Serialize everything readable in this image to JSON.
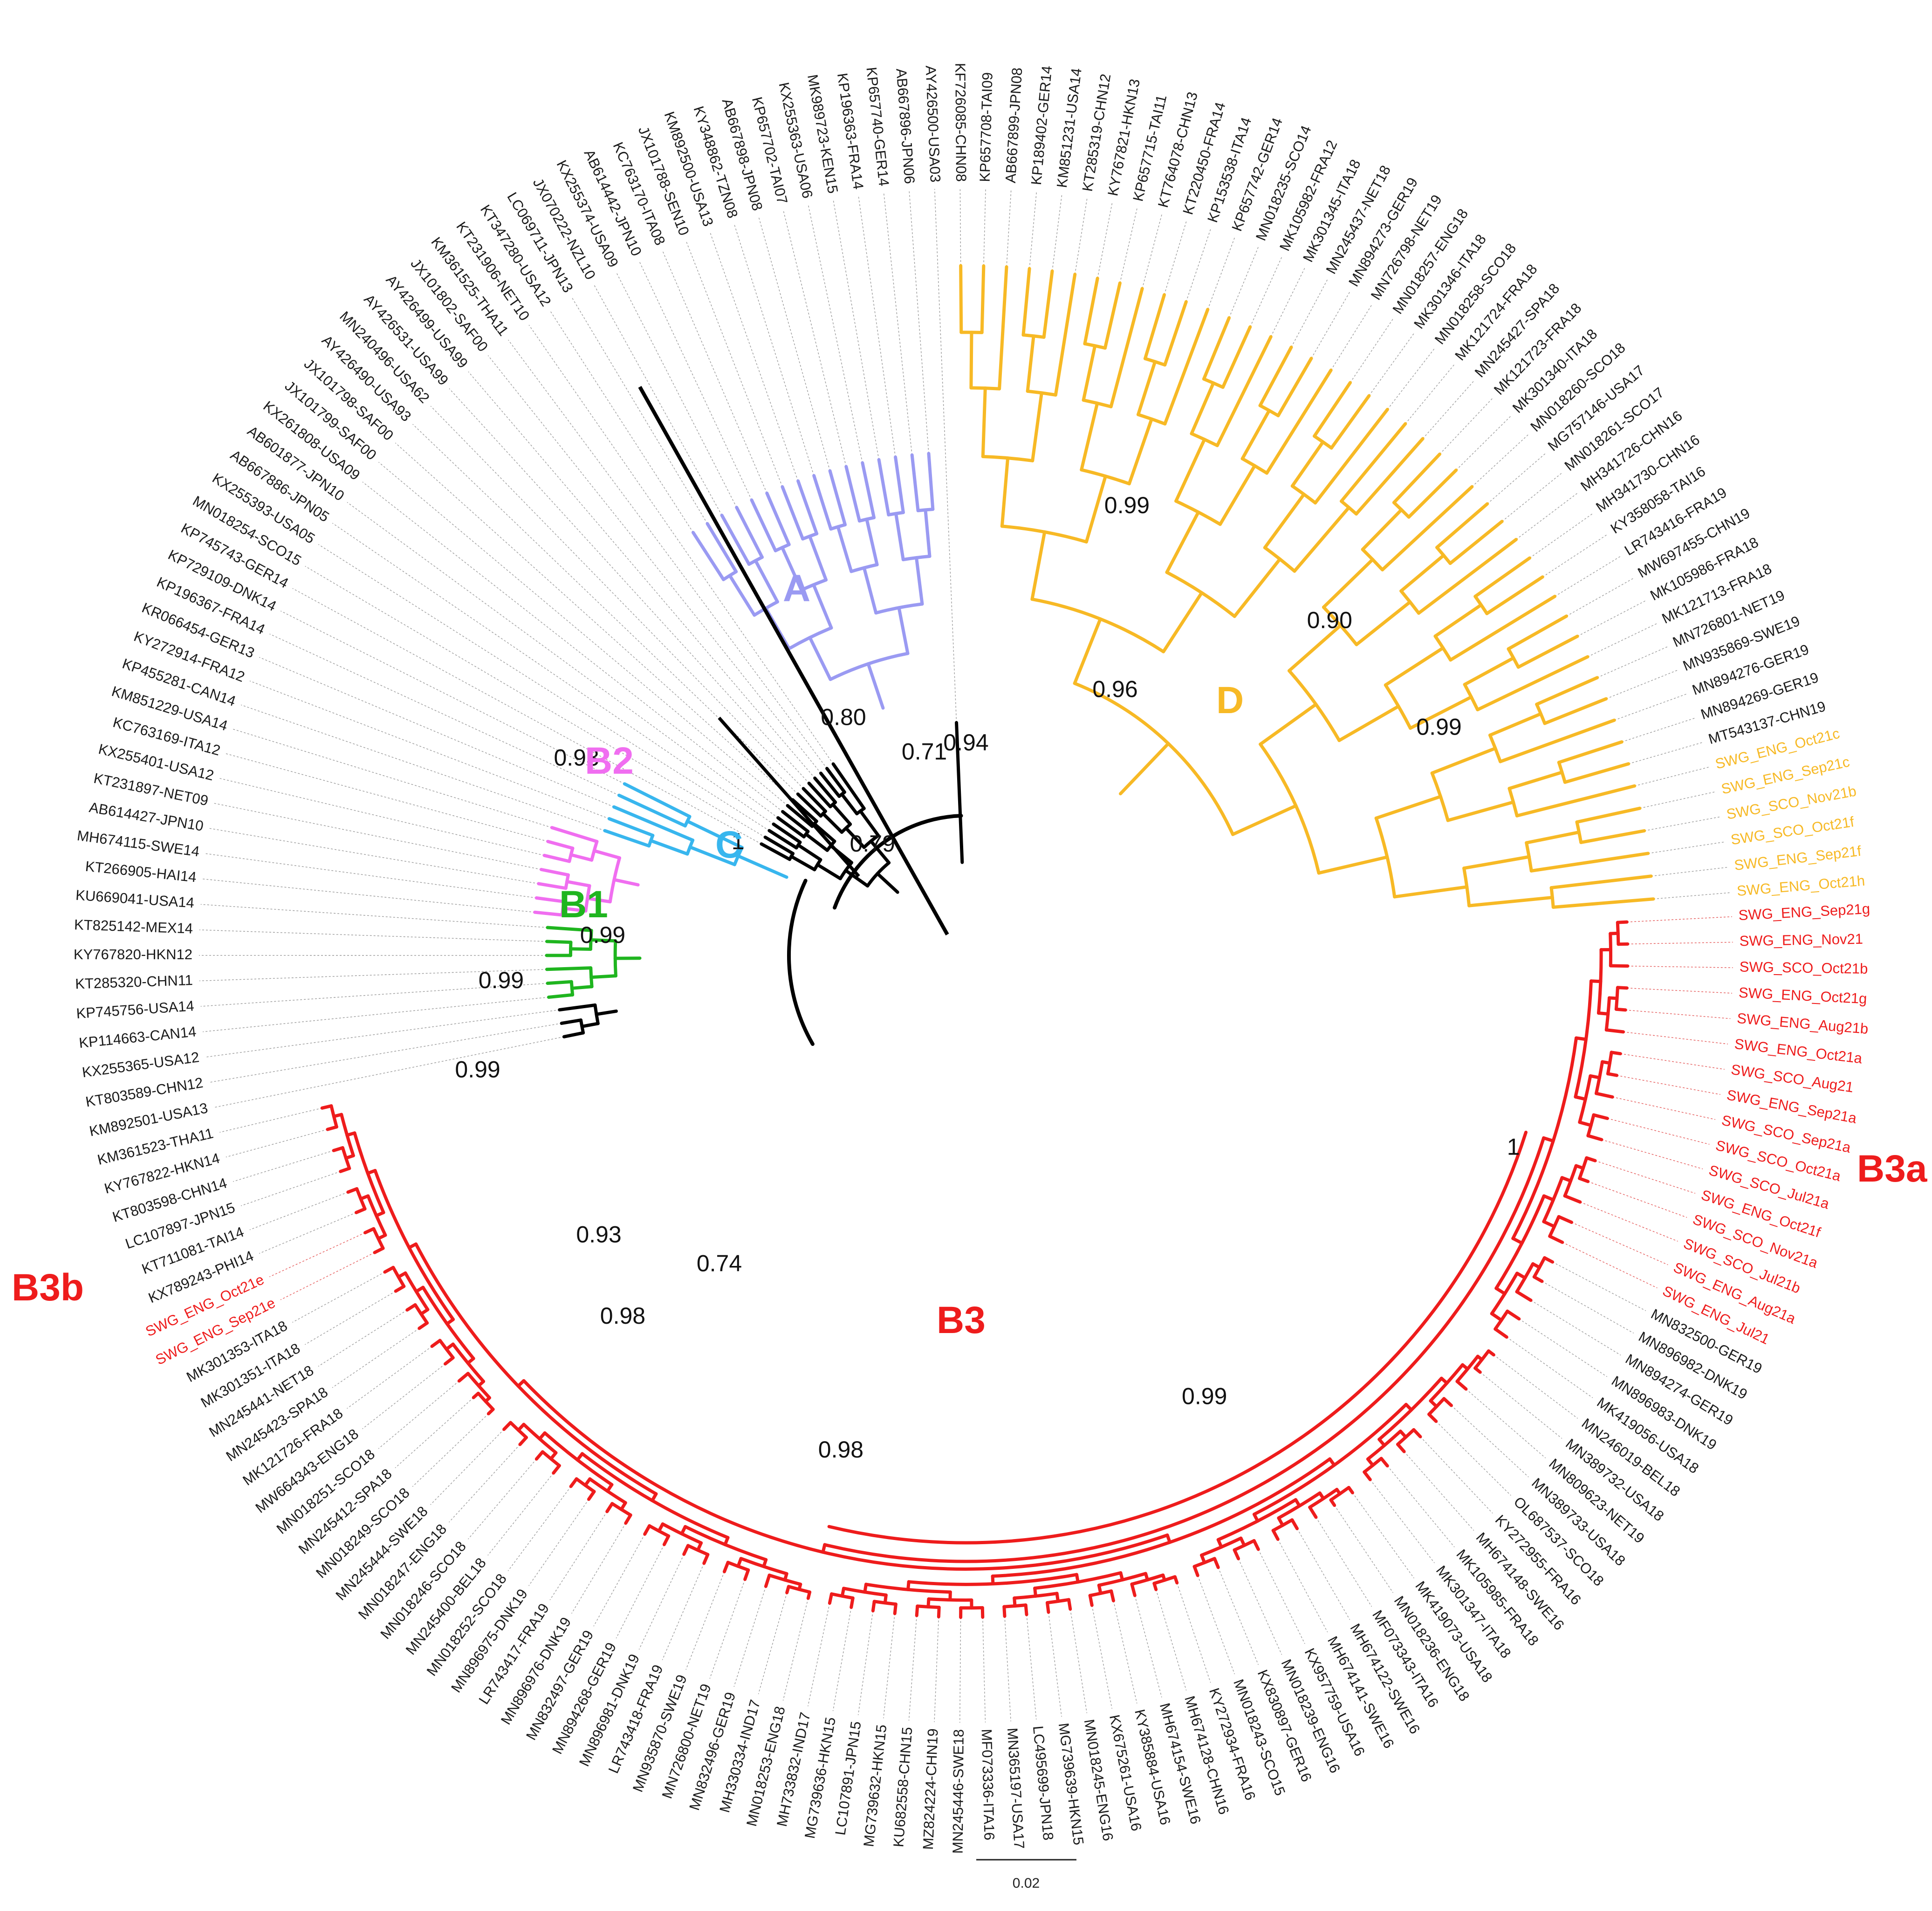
{
  "colors": {
    "A": "#9a9af2",
    "B1": "#1fb51f",
    "B2": "#f06ef0",
    "C": "#38b6ee",
    "D": "#f7b925",
    "B3": "#ee1c1c",
    "backbone": "#000000",
    "tip_black": "#1a1a1a"
  },
  "clade_labels": {
    "A": "A",
    "B1": "B1",
    "B2": "B2",
    "C": "C",
    "D": "D",
    "B3": "B3",
    "B3a": "B3a",
    "B3b": "B3b"
  },
  "support_values": [
    "0.71",
    "0.96",
    "0.99",
    "0.90",
    "0.99",
    "0.94",
    "0.80",
    "0.79",
    "1",
    "0.93",
    "0.99",
    "0.99",
    "0.99",
    "0.93",
    "0.98",
    "0.74",
    "0.98",
    "0.99",
    "1"
  ],
  "scale_bar": {
    "label": "0.02"
  },
  "tips": [
    {
      "label": "SWG_ENG_Sep21g",
      "clade": "B3",
      "color": "red"
    },
    {
      "label": "SWG_ENG_Nov21",
      "clade": "B3",
      "color": "red"
    },
    {
      "label": "SWG_SCO_Oct21b",
      "clade": "B3",
      "color": "red"
    },
    {
      "label": "SWG_ENG_Oct21g",
      "clade": "B3",
      "color": "red"
    },
    {
      "label": "SWG_ENG_Aug21b",
      "clade": "B3",
      "color": "red"
    },
    {
      "label": "SWG_ENG_Oct21a",
      "clade": "B3",
      "color": "red"
    },
    {
      "label": "SWG_SCO_Aug21",
      "clade": "B3",
      "color": "red"
    },
    {
      "label": "SWG_ENG_Sep21a",
      "clade": "B3",
      "color": "red"
    },
    {
      "label": "SWG_SCO_Sep21a",
      "clade": "B3",
      "color": "red"
    },
    {
      "label": "SWG_SCO_Oct21a",
      "clade": "B3",
      "color": "red"
    },
    {
      "label": "SWG_SCO_Jul21a",
      "clade": "B3",
      "color": "red"
    },
    {
      "label": "SWG_ENG_Oct21f",
      "clade": "B3",
      "color": "red"
    },
    {
      "label": "SWG_SCO_Nov21a",
      "clade": "B3",
      "color": "red"
    },
    {
      "label": "SWG_SCO_Jul21b",
      "clade": "B3",
      "color": "red"
    },
    {
      "label": "SWG_ENG_Aug21a",
      "clade": "B3",
      "color": "red"
    },
    {
      "label": "SWG_ENG_Jul21",
      "clade": "B3",
      "color": "red"
    },
    {
      "label": "MN832500-GER19",
      "clade": "B3",
      "color": "black"
    },
    {
      "label": "MN896982-DNK19",
      "clade": "B3",
      "color": "black"
    },
    {
      "label": "MN894274-GER19",
      "clade": "B3",
      "color": "black"
    },
    {
      "label": "MN896983-DNK19",
      "clade": "B3",
      "color": "black"
    },
    {
      "label": "MK419056-USA18",
      "clade": "B3",
      "color": "black"
    },
    {
      "label": "MN246019-BEL18",
      "clade": "B3",
      "color": "black"
    },
    {
      "label": "MN389732-USA18",
      "clade": "B3",
      "color": "black"
    },
    {
      "label": "MN809623-NET19",
      "clade": "B3",
      "color": "black"
    },
    {
      "label": "MN389733-USA18",
      "clade": "B3",
      "color": "black"
    },
    {
      "label": "OL687537-SCO18",
      "clade": "B3",
      "color": "black"
    },
    {
      "label": "KY272955-FRA16",
      "clade": "B3",
      "color": "black"
    },
    {
      "label": "MH674148-SWE16",
      "clade": "B3",
      "color": "black"
    },
    {
      "label": "MK105985-FRA18",
      "clade": "B3",
      "color": "black"
    },
    {
      "label": "MK301347-ITA18",
      "clade": "B3",
      "color": "black"
    },
    {
      "label": "MK419073-USA18",
      "clade": "B3",
      "color": "black"
    },
    {
      "label": "MN018236-ENG18",
      "clade": "B3",
      "color": "black"
    },
    {
      "label": "MF073343-ITA16",
      "clade": "B3",
      "color": "black"
    },
    {
      "label": "MH674122-SWE16",
      "clade": "B3",
      "color": "black"
    },
    {
      "label": "MH674141-SWE16",
      "clade": "B3",
      "color": "black"
    },
    {
      "label": "KX957759-USA16",
      "clade": "B3",
      "color": "black"
    },
    {
      "label": "MN018239-ENG16",
      "clade": "B3",
      "color": "black"
    },
    {
      "label": "KX830897-GER16",
      "clade": "B3",
      "color": "black"
    },
    {
      "label": "MN018243-SCO15",
      "clade": "B3",
      "color": "black"
    },
    {
      "label": "KY272934-FRA16",
      "clade": "B3",
      "color": "black"
    },
    {
      "label": "MH674128-CHN16",
      "clade": "B3",
      "color": "black"
    },
    {
      "label": "MH674154-SWE16",
      "clade": "B3",
      "color": "black"
    },
    {
      "label": "KY385884-USA16",
      "clade": "B3",
      "color": "black"
    },
    {
      "label": "KX675261-USA16",
      "clade": "B3",
      "color": "black"
    },
    {
      "label": "MN018245-ENG16",
      "clade": "B3",
      "color": "black"
    },
    {
      "label": "MG739639-HKN15",
      "clade": "B3",
      "color": "black"
    },
    {
      "label": "LC495699-JPN18",
      "clade": "B3",
      "color": "black"
    },
    {
      "label": "MN365197-USA17",
      "clade": "B3",
      "color": "black"
    },
    {
      "label": "MF073336-ITA16",
      "clade": "B3",
      "color": "black"
    },
    {
      "label": "MN245446-SWE18",
      "clade": "B3",
      "color": "black"
    },
    {
      "label": "MZ824224-CHN19",
      "clade": "B3",
      "color": "black"
    },
    {
      "label": "KU682558-CHN15",
      "clade": "B3",
      "color": "black"
    },
    {
      "label": "MG739632-HKN15",
      "clade": "B3",
      "color": "black"
    },
    {
      "label": "LC107891-JPN15",
      "clade": "B3",
      "color": "black"
    },
    {
      "label": "MG739636-HKN15",
      "clade": "B3",
      "color": "black"
    },
    {
      "label": "MH733832-IND17",
      "clade": "B3",
      "color": "black"
    },
    {
      "label": "MN018253-ENG18",
      "clade": "B3",
      "color": "black"
    },
    {
      "label": "MH330334-IND17",
      "clade": "B3",
      "color": "black"
    },
    {
      "label": "MN832496-GER19",
      "clade": "B3",
      "color": "black"
    },
    {
      "label": "MN726800-NET19",
      "clade": "B3",
      "color": "black"
    },
    {
      "label": "MN935870-SWE19",
      "clade": "B3",
      "color": "black"
    },
    {
      "label": "LR743418-FRA19",
      "clade": "B3",
      "color": "black"
    },
    {
      "label": "MN896981-DNK19",
      "clade": "B3",
      "color": "black"
    },
    {
      "label": "MN894268-GER19",
      "clade": "B3",
      "color": "black"
    },
    {
      "label": "MN832497-GER19",
      "clade": "B3",
      "color": "black"
    },
    {
      "label": "MN896976-DNK19",
      "clade": "B3",
      "color": "black"
    },
    {
      "label": "LR743417-FRA19",
      "clade": "B3",
      "color": "black"
    },
    {
      "label": "MN896975-DNK19",
      "clade": "B3",
      "color": "black"
    },
    {
      "label": "MN018252-SCO18",
      "clade": "B3",
      "color": "black"
    },
    {
      "label": "MN245400-BEL18",
      "clade": "B3",
      "color": "black"
    },
    {
      "label": "MN018246-SCO18",
      "clade": "B3",
      "color": "black"
    },
    {
      "label": "MN018247-ENG18",
      "clade": "B3",
      "color": "black"
    },
    {
      "label": "MN245444-SWE18",
      "clade": "B3",
      "color": "black"
    },
    {
      "label": "MN018249-SCO18",
      "clade": "B3",
      "color": "black"
    },
    {
      "label": "MN245412-SPA18",
      "clade": "B3",
      "color": "black"
    },
    {
      "label": "MN018251-SCO18",
      "clade": "B3",
      "color": "black"
    },
    {
      "label": "MW664343-ENG18",
      "clade": "B3",
      "color": "black"
    },
    {
      "label": "MK121726-FRA18",
      "clade": "B3",
      "color": "black"
    },
    {
      "label": "MN245423-SPA18",
      "clade": "B3",
      "color": "black"
    },
    {
      "label": "MN245441-NET18",
      "clade": "B3",
      "color": "black"
    },
    {
      "label": "MK301351-ITA18",
      "clade": "B3",
      "color": "black"
    },
    {
      "label": "MK301353-ITA18",
      "clade": "B3",
      "color": "black"
    },
    {
      "label": "SWG_ENG_Sep21e",
      "clade": "B3",
      "color": "red"
    },
    {
      "label": "SWG_ENG_Oct21e",
      "clade": "B3",
      "color": "red"
    },
    {
      "label": "KX789243-PHI14",
      "clade": "B3",
      "color": "black"
    },
    {
      "label": "KT711081-TAI14",
      "clade": "B3",
      "color": "black"
    },
    {
      "label": "LC107897-JPN15",
      "clade": "B3",
      "color": "black"
    },
    {
      "label": "KT803598-CHN14",
      "clade": "B3",
      "color": "black"
    },
    {
      "label": "KY767822-HKN14",
      "clade": "B3",
      "color": "black"
    },
    {
      "label": "KM361523-THA11",
      "clade": "B3",
      "color": "black"
    },
    {
      "label": "KM892501-USA13",
      "clade": "B0",
      "color": "black"
    },
    {
      "label": "KT803589-CHN12",
      "clade": "B0",
      "color": "black"
    },
    {
      "label": "KX255365-USA12",
      "clade": "B0",
      "color": "black"
    },
    {
      "label": "KP114663-CAN14",
      "clade": "B1",
      "color": "black"
    },
    {
      "label": "KP745756-USA14",
      "clade": "B1",
      "color": "black"
    },
    {
      "label": "KT285320-CHN11",
      "clade": "B1",
      "color": "black"
    },
    {
      "label": "KY767820-HKN12",
      "clade": "B1",
      "color": "black"
    },
    {
      "label": "KT825142-MEX14",
      "clade": "B1",
      "color": "black"
    },
    {
      "label": "KU669041-USA14",
      "clade": "B1",
      "color": "black"
    },
    {
      "label": "KT266905-HAI14",
      "clade": "B2",
      "color": "black"
    },
    {
      "label": "MH674115-SWE14",
      "clade": "B2",
      "color": "black"
    },
    {
      "label": "AB614427-JPN10",
      "clade": "B2",
      "color": "black"
    },
    {
      "label": "KT231897-NET09",
      "clade": "B2",
      "color": "black"
    },
    {
      "label": "KX255401-USA12",
      "clade": "B2",
      "color": "black"
    },
    {
      "label": "KC763169-ITA12",
      "clade": "B2",
      "color": "black"
    },
    {
      "label": "KM851229-USA14",
      "clade": "B2",
      "color": "black"
    },
    {
      "label": "KP455281-CAN14",
      "clade": "C",
      "color": "black"
    },
    {
      "label": "KY272914-FRA12",
      "clade": "C",
      "color": "black"
    },
    {
      "label": "KR066454-GER13",
      "clade": "C",
      "color": "black"
    },
    {
      "label": "KP196367-FRA14",
      "clade": "C",
      "color": "black"
    },
    {
      "label": "KP729109-DNK14",
      "clade": "C",
      "color": "black"
    },
    {
      "label": "KP745743-GER14",
      "clade": "O",
      "color": "black"
    },
    {
      "label": "MN018254-SCO15",
      "clade": "O",
      "color": "black"
    },
    {
      "label": "KX255393-USA05",
      "clade": "O",
      "color": "black"
    },
    {
      "label": "AB667886-JPN05",
      "clade": "O",
      "color": "black"
    },
    {
      "label": "AB601877-JPN10",
      "clade": "O",
      "color": "black"
    },
    {
      "label": "KX261808-USA09",
      "clade": "O",
      "color": "black"
    },
    {
      "label": "JX101799-SAF00",
      "clade": "O",
      "color": "black"
    },
    {
      "label": "JX101798-SAF00",
      "clade": "O",
      "color": "black"
    },
    {
      "label": "AY426490-USA93",
      "clade": "O",
      "color": "black"
    },
    {
      "label": "MN240496-USA62",
      "clade": "O",
      "color": "black"
    },
    {
      "label": "AY426531-USA99",
      "clade": "O",
      "color": "black"
    },
    {
      "label": "AY426499-USA99",
      "clade": "O",
      "color": "black"
    },
    {
      "label": "JX101802-SAF00",
      "clade": "O",
      "color": "black"
    },
    {
      "label": "KM361525-THA11",
      "clade": "O",
      "color": "black"
    },
    {
      "label": "KT231906-NET10",
      "clade": "O",
      "color": "black"
    },
    {
      "label": "KT347280-USA12",
      "clade": "A",
      "color": "black"
    },
    {
      "label": "LC069711-JPN13",
      "clade": "A",
      "color": "black"
    },
    {
      "label": "JX070222-NZL10",
      "clade": "A",
      "color": "black"
    },
    {
      "label": "KX255374-USA09",
      "clade": "A",
      "color": "black"
    },
    {
      "label": "AB614442-JPN10",
      "clade": "A",
      "color": "black"
    },
    {
      "label": "KC763170-ITA08",
      "clade": "A",
      "color": "black"
    },
    {
      "label": "JX101788-SEN10",
      "clade": "A",
      "color": "black"
    },
    {
      "label": "KM892500-USA13",
      "clade": "A",
      "color": "black"
    },
    {
      "label": "KY348862-TZN08",
      "clade": "A",
      "color": "black"
    },
    {
      "label": "AB667898-JPN08",
      "clade": "A",
      "color": "black"
    },
    {
      "label": "KP657702-TAI07",
      "clade": "A",
      "color": "black"
    },
    {
      "label": "KX255363-USA06",
      "clade": "A",
      "color": "black"
    },
    {
      "label": "MK989723-KEN15",
      "clade": "A",
      "color": "black"
    },
    {
      "label": "KP196363-FRA14",
      "clade": "A",
      "color": "black"
    },
    {
      "label": "KP657740-GER14",
      "clade": "A",
      "color": "black"
    },
    {
      "label": "AB667896-JPN06",
      "clade": "A",
      "color": "black"
    },
    {
      "label": "AY426500-USA03",
      "clade": "O",
      "color": "black"
    },
    {
      "label": "KF726085-CHN08",
      "clade": "D",
      "color": "black"
    },
    {
      "label": "KP657708-TAI09",
      "clade": "D",
      "color": "black"
    },
    {
      "label": "AB667899-JPN08",
      "clade": "D",
      "color": "black"
    },
    {
      "label": "KP189402-GER14",
      "clade": "D",
      "color": "black"
    },
    {
      "label": "KM851231-USA14",
      "clade": "D",
      "color": "black"
    },
    {
      "label": "KT285319-CHN12",
      "clade": "D",
      "color": "black"
    },
    {
      "label": "KY767821-HKN13",
      "clade": "D",
      "color": "black"
    },
    {
      "label": "KP657715-TAI11",
      "clade": "D",
      "color": "black"
    },
    {
      "label": "KT764078-CHN13",
      "clade": "D",
      "color": "black"
    },
    {
      "label": "KT220450-FRA14",
      "clade": "D",
      "color": "black"
    },
    {
      "label": "KP153538-ITA14",
      "clade": "D",
      "color": "black"
    },
    {
      "label": "KP657742-GER14",
      "clade": "D",
      "color": "black"
    },
    {
      "label": "MN018235-SCO14",
      "clade": "D",
      "color": "black"
    },
    {
      "label": "MK105982-FRA12",
      "clade": "D",
      "color": "black"
    },
    {
      "label": "MK301345-ITA18",
      "clade": "D",
      "color": "black"
    },
    {
      "label": "MN245437-NET18",
      "clade": "D",
      "color": "black"
    },
    {
      "label": "MN894273-GER19",
      "clade": "D",
      "color": "black"
    },
    {
      "label": "MN726798-NET19",
      "clade": "D",
      "color": "black"
    },
    {
      "label": "MN018257-ENG18",
      "clade": "D",
      "color": "black"
    },
    {
      "label": "MK301346-ITA18",
      "clade": "D",
      "color": "black"
    },
    {
      "label": "MN018258-SCO18",
      "clade": "D",
      "color": "black"
    },
    {
      "label": "MK121724-FRA18",
      "clade": "D",
      "color": "black"
    },
    {
      "label": "MN245427-SPA18",
      "clade": "D",
      "color": "black"
    },
    {
      "label": "MK121723-FRA18",
      "clade": "D",
      "color": "black"
    },
    {
      "label": "MK301340-ITA18",
      "clade": "D",
      "color": "black"
    },
    {
      "label": "MN018260-SCO18",
      "clade": "D",
      "color": "black"
    },
    {
      "label": "MG757146-USA17",
      "clade": "D",
      "color": "black"
    },
    {
      "label": "MN018261-SCO17",
      "clade": "D",
      "color": "black"
    },
    {
      "label": "MH341726-CHN16",
      "clade": "D",
      "color": "black"
    },
    {
      "label": "MH341730-CHN16",
      "clade": "D",
      "color": "black"
    },
    {
      "label": "KY358058-TAI16",
      "clade": "D",
      "color": "black"
    },
    {
      "label": "LR743416-FRA19",
      "clade": "D",
      "color": "black"
    },
    {
      "label": "MW697455-CHN19",
      "clade": "D",
      "color": "black"
    },
    {
      "label": "MK105986-FRA18",
      "clade": "D",
      "color": "black"
    },
    {
      "label": "MK121713-FRA18",
      "clade": "D",
      "color": "black"
    },
    {
      "label": "MN726801-NET19",
      "clade": "D",
      "color": "black"
    },
    {
      "label": "MN935869-SWE19",
      "clade": "D",
      "color": "black"
    },
    {
      "label": "MN894276-GER19",
      "clade": "D",
      "color": "black"
    },
    {
      "label": "MN894269-GER19",
      "clade": "D",
      "color": "black"
    },
    {
      "label": "MT543137-CHN19",
      "clade": "D",
      "color": "black"
    },
    {
      "label": "SWG_ENG_Oct21c",
      "clade": "D",
      "color": "yellow"
    },
    {
      "label": "SWG_ENG_Sep21c",
      "clade": "D",
      "color": "yellow"
    },
    {
      "label": "SWG_SCO_Nov21b",
      "clade": "D",
      "color": "yellow"
    },
    {
      "label": "SWG_SCO_Oct21f",
      "clade": "D",
      "color": "yellow"
    },
    {
      "label": "SWG_ENG_Sep21f",
      "clade": "D",
      "color": "yellow"
    },
    {
      "label": "SWG_ENG_Oct21h",
      "clade": "D",
      "color": "yellow"
    }
  ]
}
